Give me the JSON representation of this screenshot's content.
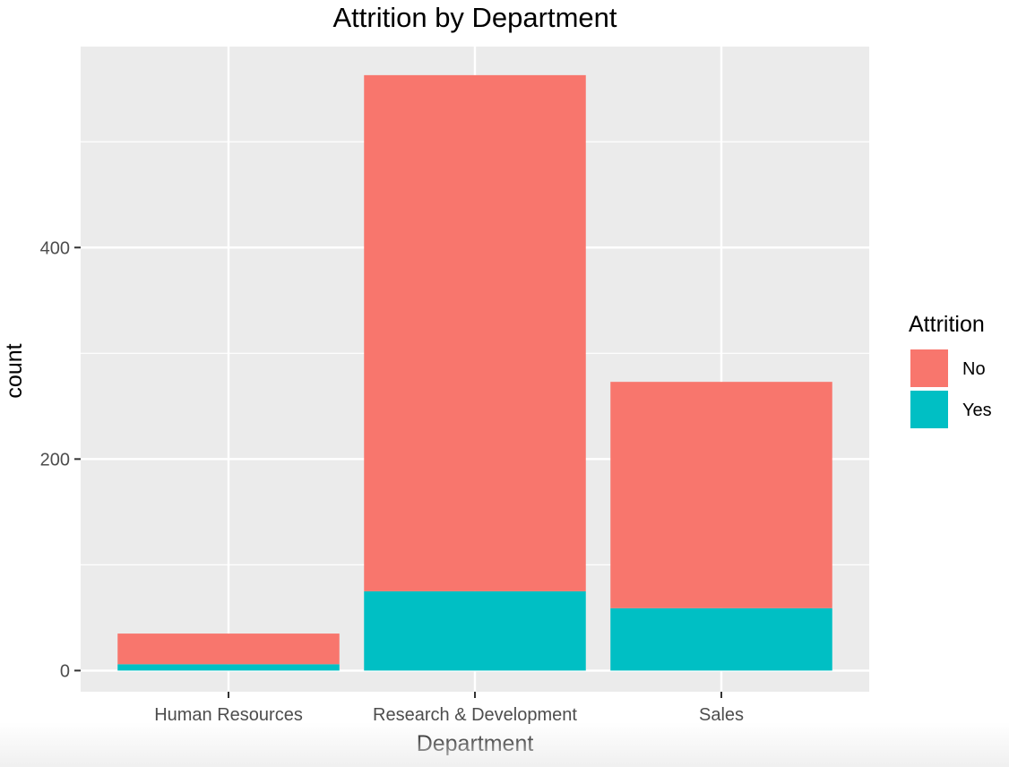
{
  "chart_data": {
    "type": "bar",
    "stacked": true,
    "title": "Attrition by Department",
    "xlabel": "Department",
    "ylabel": "count",
    "categories": [
      "Human Resources",
      "Research & Development",
      "Sales"
    ],
    "series": [
      {
        "name": "No",
        "values": [
          29,
          488,
          214
        ]
      },
      {
        "name": "Yes",
        "values": [
          6,
          75,
          59
        ]
      }
    ],
    "ylim": [
      -20,
      590
    ],
    "yticks": [
      0,
      200,
      400
    ],
    "ytick_labels": [
      "0",
      "200",
      "400"
    ],
    "grid": true,
    "legend": {
      "title": "Attrition",
      "position": "right"
    },
    "colors": {
      "No": "#F8766D",
      "Yes": "#00BFC4",
      "panel_background": "#EBEBEB",
      "grid": "#FFFFFF"
    }
  }
}
